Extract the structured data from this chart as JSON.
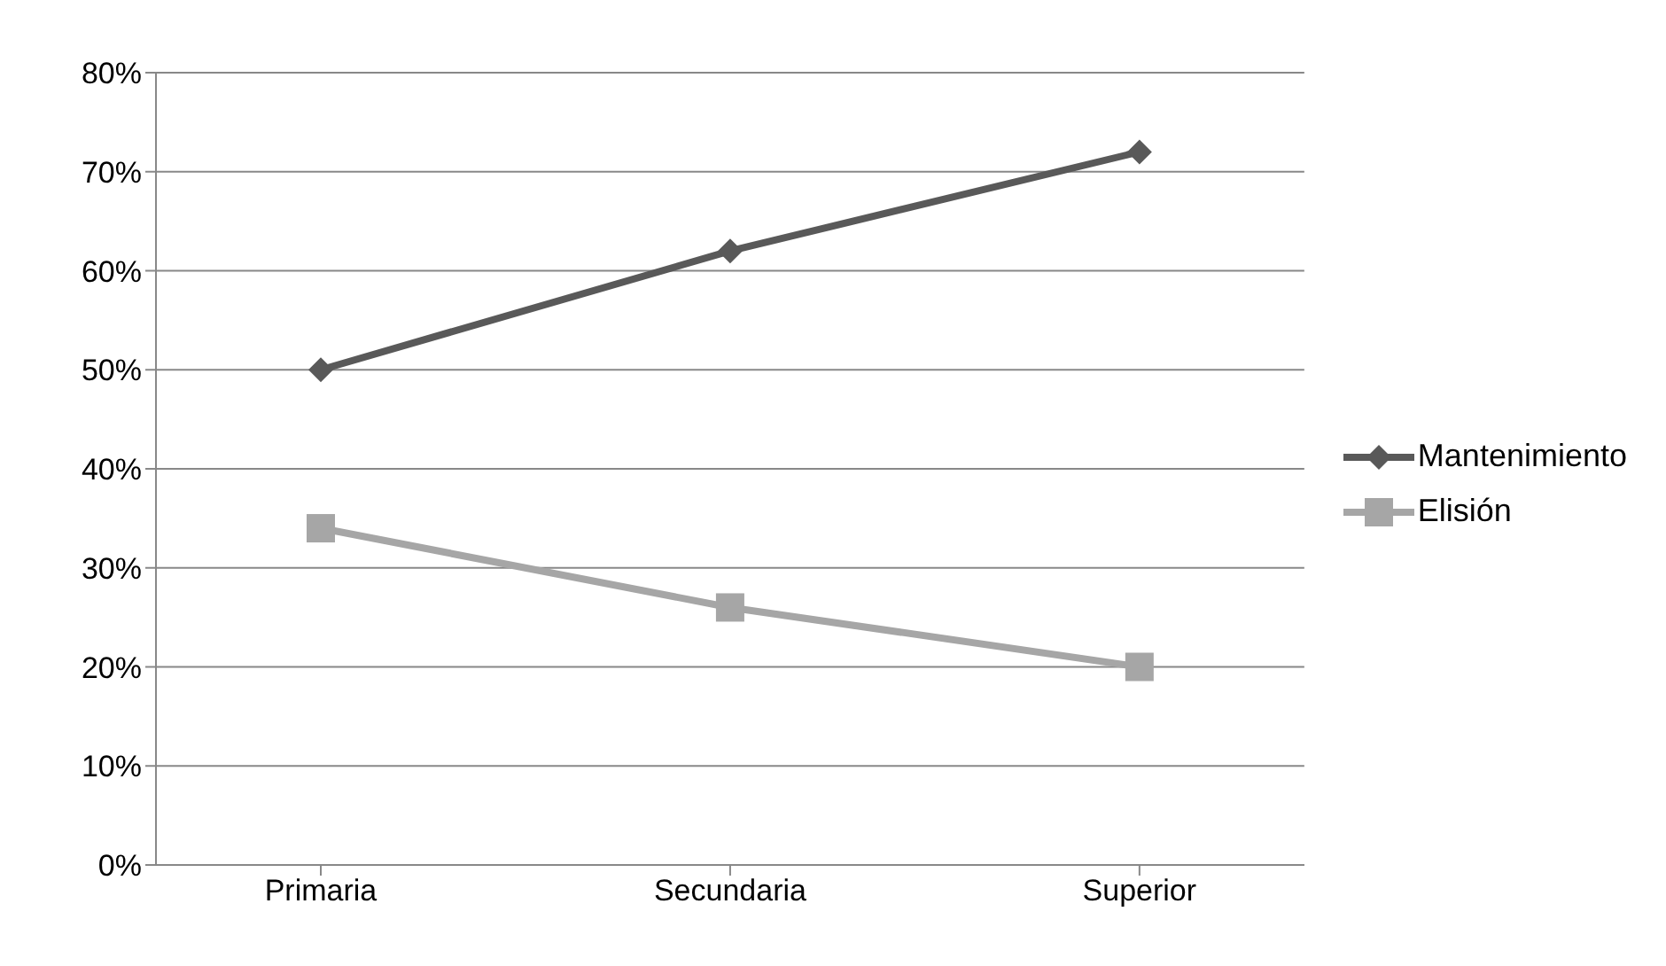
{
  "chart_data": {
    "type": "line",
    "categories": [
      "Primaria",
      "Secundaria",
      "Superior"
    ],
    "series": [
      {
        "name": "Mantenimiento",
        "color": "#595959",
        "marker": "diamond",
        "values": [
          50,
          62,
          72
        ]
      },
      {
        "name": "Elisión",
        "color": "#a6a6a6",
        "marker": "square",
        "values": [
          34,
          26,
          20
        ]
      }
    ],
    "ylim": [
      0,
      80
    ],
    "yticks": [
      {
        "value": 0,
        "label": "0%"
      },
      {
        "value": 10,
        "label": "10%"
      },
      {
        "value": 20,
        "label": "20%"
      },
      {
        "value": 30,
        "label": "30%"
      },
      {
        "value": 40,
        "label": "40%"
      },
      {
        "value": 50,
        "label": "50%"
      },
      {
        "value": 60,
        "label": "60%"
      },
      {
        "value": 70,
        "label": "70%"
      },
      {
        "value": 80,
        "label": "80%"
      }
    ],
    "grid": "y",
    "legend": "right",
    "line_style": "solid"
  }
}
